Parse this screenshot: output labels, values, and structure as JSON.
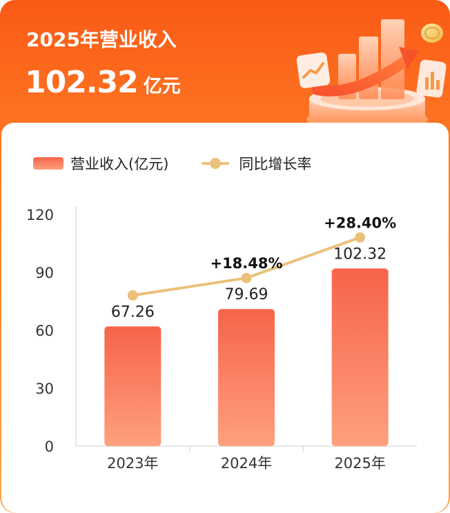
{
  "header": {
    "title": "2025年营业收入",
    "value": "102.32",
    "unit": "亿元"
  },
  "colors": {
    "header_gradient": [
      "#fa5a16",
      "#fea34f"
    ],
    "bar_gradient": [
      "#f7644a",
      "#fea07e"
    ],
    "line": "#ebc07a"
  },
  "chart_data": {
    "type": "bar",
    "categories": [
      "2023年",
      "2024年",
      "2025年"
    ],
    "series": [
      {
        "name": "营业收入(亿元)",
        "type": "bar",
        "values": [
          67.26,
          79.69,
          102.32
        ],
        "labels": [
          "67.26",
          "79.69",
          "102.32"
        ],
        "drawn_heights": [
          62,
          71,
          92
        ]
      },
      {
        "name": "同比增长率",
        "type": "line",
        "labels": [
          "",
          "+18.48%",
          "+28.40%"
        ]
      }
    ],
    "yticks": [
      "0",
      "30",
      "60",
      "90",
      "120"
    ],
    "ylim": [
      0,
      120
    ],
    "grid": false,
    "legend_position": "top-left"
  }
}
